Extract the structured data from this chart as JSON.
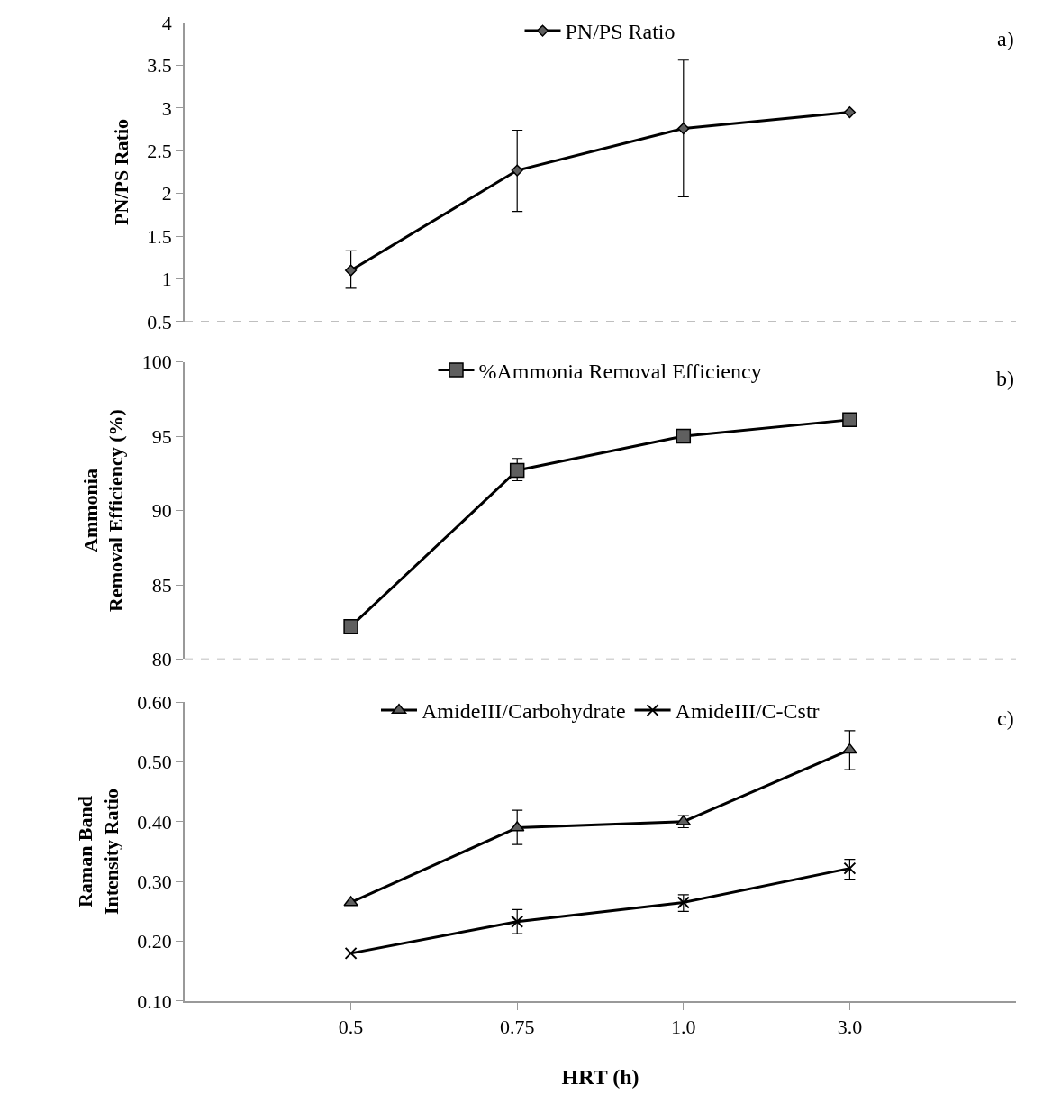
{
  "chart_data": [
    {
      "type": "line",
      "ylabel": "PN/PS Ratio",
      "categories": [
        "0.5",
        "0.75",
        "1.0",
        "3.0"
      ],
      "ylim": [
        0.5,
        4
      ],
      "yticks": [
        0.5,
        1,
        1.5,
        2,
        2.5,
        3,
        3.5,
        4
      ],
      "tick_labels": "y",
      "legend": "top",
      "annotations": [
        "a)"
      ],
      "series": [
        {
          "name": "PN/PS Ratio",
          "color": "#000000",
          "marker": "diamond",
          "values": [
            1.1,
            2.27,
            2.76,
            2.95
          ],
          "errors": [
            [
              0.89,
              1.33
            ],
            [
              1.79,
              2.74
            ],
            [
              1.96,
              3.56
            ],
            null
          ]
        }
      ]
    },
    {
      "type": "line",
      "ylabel": "Ammonia\nRemoval Efficiency (%)",
      "categories": [
        "0.5",
        "0.75",
        "1.0",
        "3.0"
      ],
      "ylim": [
        80,
        100
      ],
      "yticks": [
        80,
        85,
        90,
        95,
        100
      ],
      "tick_labels": "y",
      "legend": "top",
      "annotations": [
        "b)"
      ],
      "series": [
        {
          "name": "%Ammonia Removal Efficiency",
          "color": "#000000",
          "marker": "square",
          "values": [
            82.2,
            92.7,
            95.0,
            96.1
          ],
          "errors": [
            null,
            [
              92.0,
              93.5
            ],
            null,
            null
          ]
        }
      ]
    },
    {
      "type": "line",
      "ylabel": "Raman Band\nIntensity Ratio",
      "xlabel": "HRT (h)",
      "categories": [
        "0.5",
        "0.75",
        "1.0",
        "3.0"
      ],
      "ylim": [
        0.1,
        0.6
      ],
      "yticks": [
        {
          "value": 0.1,
          "label": "0.10"
        },
        {
          "value": 0.2,
          "label": "0.20"
        },
        {
          "value": 0.3,
          "label": "0.30"
        },
        {
          "value": 0.4,
          "label": "0.40"
        },
        {
          "value": 0.5,
          "label": "0.50"
        },
        {
          "value": 0.6,
          "label": "0.60"
        }
      ],
      "legend": "top",
      "annotations": [
        "c)"
      ],
      "series": [
        {
          "name": "AmideIII/Carbohydrate",
          "color": "#000000",
          "marker": "triangle",
          "values": [
            0.265,
            0.39,
            0.4,
            0.52
          ],
          "errors": [
            null,
            [
              0.362,
              0.419
            ],
            [
              0.39,
              0.41
            ],
            [
              0.487,
              0.552
            ]
          ]
        },
        {
          "name": "AmideIII/C-Cstr",
          "color": "#000000",
          "marker": "cross",
          "values": [
            0.18,
            0.233,
            0.265,
            0.322
          ],
          "errors": [
            null,
            [
              0.213,
              0.253
            ],
            [
              0.25,
              0.278
            ],
            [
              0.304,
              0.337
            ]
          ]
        }
      ]
    }
  ]
}
